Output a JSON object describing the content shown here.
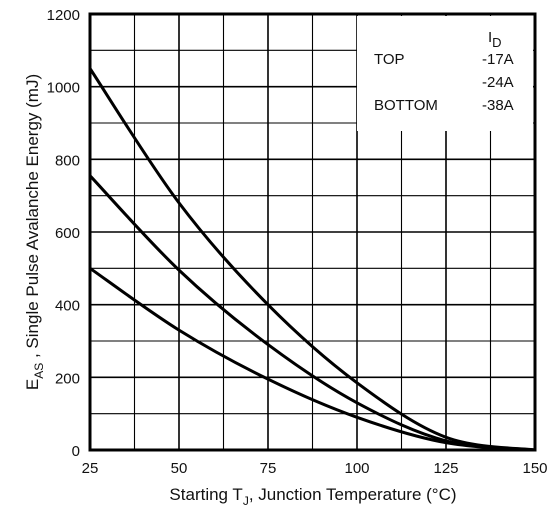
{
  "chart_data": {
    "type": "line",
    "x": [
      25,
      50,
      75,
      100,
      125,
      150
    ],
    "series": [
      {
        "name": "-17A",
        "values": [
          1050,
          680,
          400,
          185,
          35,
          0
        ]
      },
      {
        "name": "-24A",
        "values": [
          755,
          495,
          290,
          130,
          25,
          0
        ]
      },
      {
        "name": "-38A",
        "values": [
          500,
          330,
          195,
          90,
          20,
          0
        ]
      }
    ],
    "xlabel": {
      "prefix": "Starting T",
      "sub": "J",
      "suffix": ", Junction Temperature   (°C)"
    },
    "ylabel": {
      "prefix": "E",
      "sub": "AS",
      "suffix": " , Single Pulse Avalanche Energy (mJ)"
    },
    "xlim": [
      25,
      150
    ],
    "ylim": [
      0,
      1200
    ],
    "xticks": [
      25,
      50,
      75,
      100,
      125,
      150
    ],
    "yticks": [
      0,
      200,
      400,
      600,
      800,
      1000,
      1200
    ],
    "grid": true,
    "legend": {
      "placement": "top-right",
      "header": {
        "main": "I",
        "sub": "D"
      },
      "rows": [
        {
          "tag": "TOP",
          "value": "-17A"
        },
        {
          "tag": "",
          "value": "-24A"
        },
        {
          "tag": "BOTTOM",
          "value": "-38A"
        }
      ]
    }
  }
}
